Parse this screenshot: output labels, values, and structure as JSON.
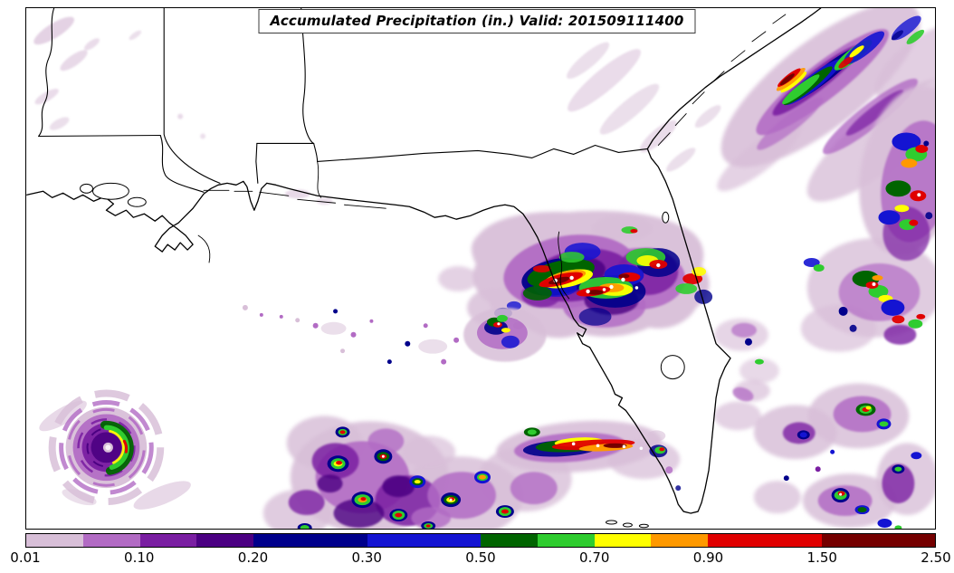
{
  "title": "Accumulated Precipitation (in.) Valid: 201509111400",
  "colorbar": {
    "ticks": [
      "0.01",
      "0.10",
      "0.20",
      "0.30",
      "0.50",
      "0.70",
      "0.90",
      "1.50",
      "2.50"
    ],
    "over_color": "#ffffff",
    "segments": [
      {
        "color": "#d8bfd8",
        "w": 0.5,
        "range": "0.01-0.05"
      },
      {
        "color": "#b26bc4",
        "w": 0.5,
        "range": "0.05-0.10"
      },
      {
        "color": "#7a1fa2",
        "w": 0.5,
        "range": "0.10-0.15"
      },
      {
        "color": "#4b0082",
        "w": 0.5,
        "range": "0.15-0.20"
      },
      {
        "color": "#00008b",
        "w": 1,
        "range": "0.20-0.30"
      },
      {
        "color": "#1414d2",
        "w": 1,
        "range": "0.30-0.50"
      },
      {
        "color": "#006400",
        "w": 0.5,
        "range": "0.50-0.60"
      },
      {
        "color": "#2fcc2f",
        "w": 0.5,
        "range": "0.60-0.70"
      },
      {
        "color": "#ffff00",
        "w": 0.5,
        "range": "0.70-0.80"
      },
      {
        "color": "#ff9900",
        "w": 0.5,
        "range": "0.80-0.90"
      },
      {
        "color": "#e00000",
        "w": 1,
        "range": "0.90-1.50"
      },
      {
        "color": "#750000",
        "w": 1,
        "range": "1.50-2.50"
      }
    ]
  },
  "map": {
    "outline_color": "#000000",
    "background_color": "#ffffff"
  },
  "chart_data": {
    "type": "heatmap",
    "title": "Accumulated Precipitation (in.) Valid: 201509111400",
    "variable": "Accumulated Precipitation",
    "units": "in.",
    "valid_time": "201509111400",
    "legend_position": "bottom",
    "scale": {
      "ticks": [
        0.01,
        0.1,
        0.2,
        0.3,
        0.5,
        0.7,
        0.9,
        1.5,
        2.5
      ],
      "min": 0.01,
      "max": 2.5,
      "over_max_color": "#ffffff"
    },
    "region": "Southeastern United States, Gulf of Mexico and western Atlantic (Louisiana, Mississippi, Alabama, Georgia, Florida)",
    "features": [
      "Intense precipitation maximum exceeding 2.50 in. (white cores in red band) over north-central Florida and the Big Bend",
      "Tropical cyclone with purple spiral banding and a bright green/yellow inner band in the lower-left (southwest Gulf of Mexico)",
      "Diagonal northeast-southwest convective rain streaks offshore of the Carolinas in the upper right, with an embedded red core",
      "Band of strong cells along the right (Atlantic) edge with red/orange cores",
      "Broken east-west band of convective cells with red streaks across the southern Gulf of Mexico",
      "Scattered light (0.01-0.10 in.) lavender streaks over Mississippi and the northern Gulf"
    ]
  }
}
